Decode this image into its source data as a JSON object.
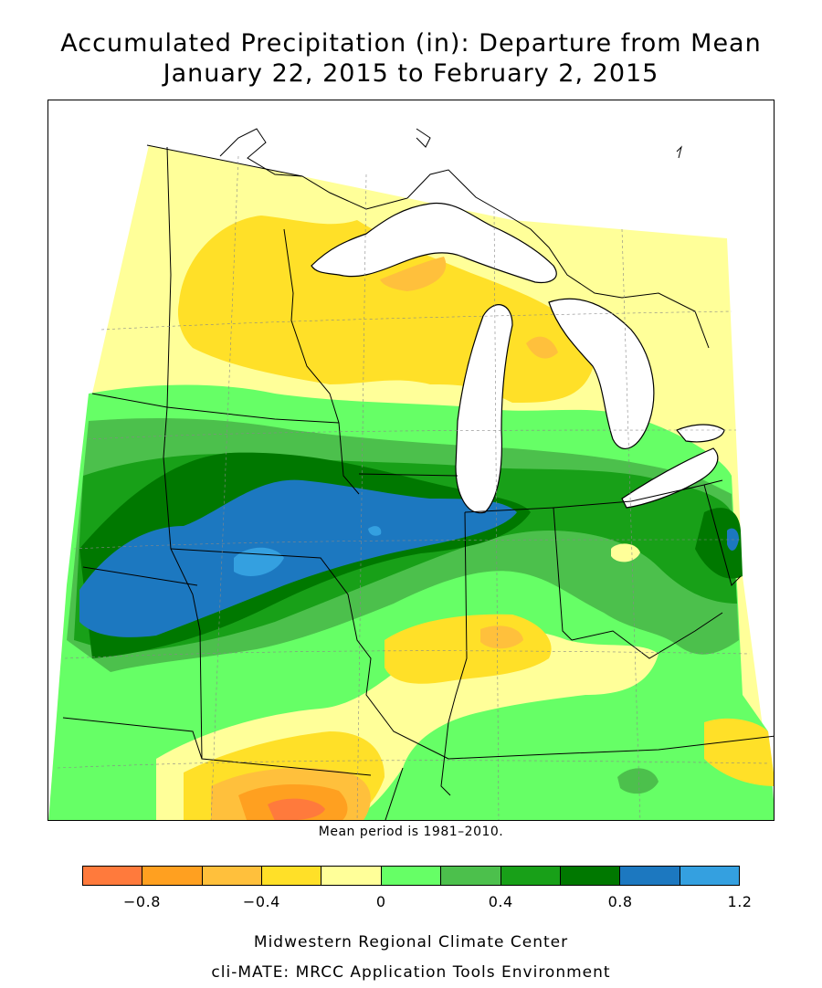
{
  "title": {
    "line1": "Accumulated Precipitation (in): Departure from Mean",
    "line2": "January 22, 2015 to February 2, 2015"
  },
  "note": "Mean period is 1981–2010.",
  "legend": {
    "colors": [
      "#ff7a3c",
      "#ffa020",
      "#ffc03c",
      "#ffe028",
      "#ffff99",
      "#66ff66",
      "#4cc04c",
      "#18a018",
      "#007800",
      "#1c78c0",
      "#34a0e0"
    ],
    "tick_labels": [
      "−0.8",
      "−0.4",
      "0",
      "0.4",
      "0.8",
      "1.2"
    ],
    "tick_values": [
      -0.8,
      -0.4,
      0,
      0.4,
      0.8,
      1.2
    ],
    "min": -1.0,
    "max": 1.2
  },
  "footer": {
    "line1": "Midwestern Regional Climate Center",
    "line2": "cli-MATE: MRCC Application Tools Environment"
  }
}
